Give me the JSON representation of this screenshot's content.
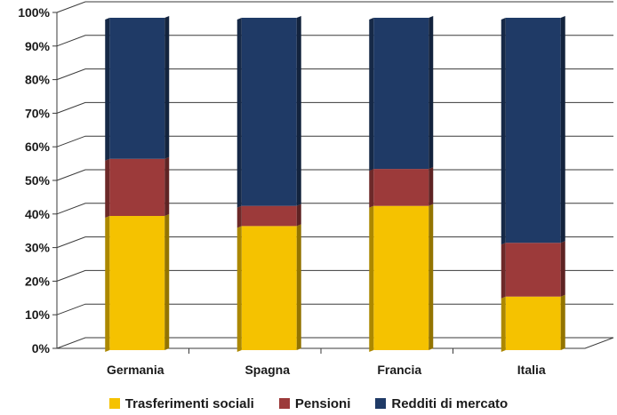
{
  "chart_data": {
    "type": "bar",
    "stacked": true,
    "percent": true,
    "categories": [
      "Germania",
      "Spagna",
      "Francia",
      "Italia"
    ],
    "series": [
      {
        "name": "Trasferimenti sociali",
        "color": "#f5c200",
        "values": [
          41,
          38,
          44,
          17
        ]
      },
      {
        "name": "Pensioni",
        "color": "#9c3a3a",
        "values": [
          17,
          6,
          11,
          16
        ]
      },
      {
        "name": "Redditi di mercato",
        "color": "#1f3a66",
        "values": [
          42,
          56,
          45,
          67
        ]
      }
    ],
    "yticks": [
      "0%",
      "10%",
      "20%",
      "30%",
      "40%",
      "50%",
      "60%",
      "70%",
      "80%",
      "90%",
      "100%"
    ],
    "ylim": [
      0,
      100
    ],
    "grid": true,
    "legend": "bottom",
    "three_d": true
  }
}
